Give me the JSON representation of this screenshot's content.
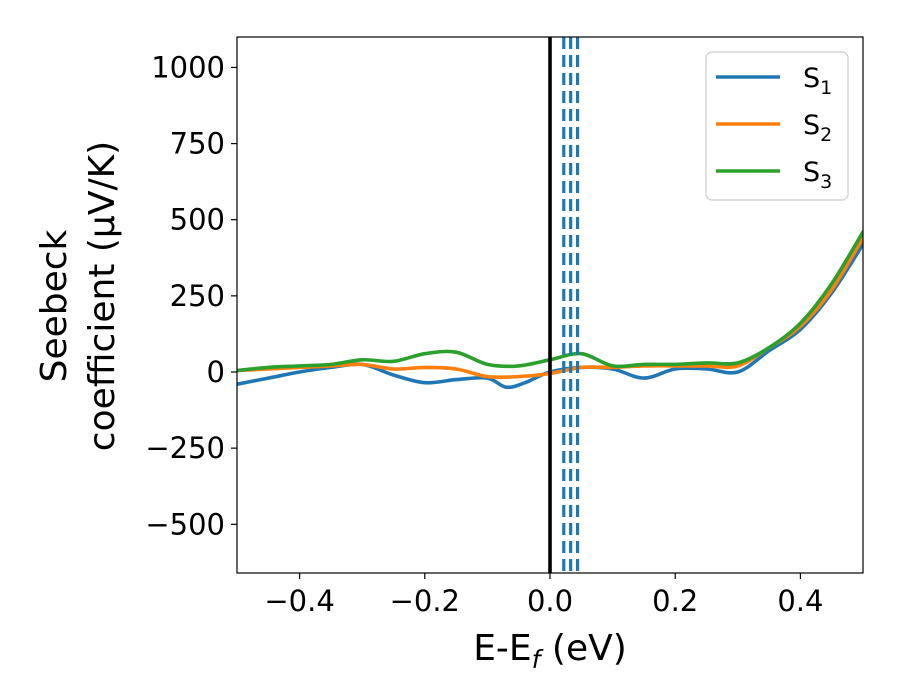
{
  "chart_data": {
    "type": "line",
    "xlabel": {
      "main": "E-E",
      "sub": "f",
      "unit": " (eV)"
    },
    "ylabel": {
      "line1": "Seebeck",
      "line2": "coefficient  (μV/K)"
    },
    "xlim": [
      -0.5,
      0.5
    ],
    "ylim": [
      -660,
      1100
    ],
    "xticks": [
      -0.4,
      -0.2,
      0.0,
      0.2,
      0.4
    ],
    "xtick_labels": [
      "−0.4",
      "−0.2",
      "0.0",
      "0.2",
      "0.4"
    ],
    "yticks": [
      -500,
      -250,
      0,
      250,
      500,
      750,
      1000
    ],
    "ytick_labels": [
      "−500",
      "−250",
      "0",
      "250",
      "500",
      "750",
      "1000"
    ],
    "grid": false,
    "legend_position": "top-right",
    "reference_lines": [
      {
        "x": 0.0,
        "style": "solid",
        "color": "#000000"
      },
      {
        "x": 0.022,
        "style": "dashed",
        "color": "#1f77b4"
      },
      {
        "x": 0.033,
        "style": "dashed",
        "color": "#1f77b4"
      },
      {
        "x": 0.044,
        "style": "dashed",
        "color": "#1f77b4"
      }
    ],
    "series": [
      {
        "name": "S",
        "sub": "1",
        "color": "#1f77b4",
        "x": [
          -0.5,
          -0.45,
          -0.4,
          -0.35,
          -0.3,
          -0.25,
          -0.2,
          -0.15,
          -0.1,
          -0.07,
          -0.04,
          0.0,
          0.05,
          0.1,
          0.15,
          0.2,
          0.25,
          0.3,
          0.35,
          0.4,
          0.45,
          0.5
        ],
        "y": [
          -40,
          -20,
          0,
          15,
          25,
          -10,
          -35,
          -25,
          -20,
          -50,
          -35,
          0,
          15,
          10,
          -20,
          10,
          10,
          0,
          70,
          140,
          260,
          420
        ]
      },
      {
        "name": "S",
        "sub": "2",
        "color": "#ff7f0e",
        "x": [
          -0.5,
          -0.45,
          -0.4,
          -0.35,
          -0.3,
          -0.25,
          -0.2,
          -0.15,
          -0.1,
          -0.05,
          0.0,
          0.05,
          0.1,
          0.15,
          0.2,
          0.25,
          0.3,
          0.35,
          0.4,
          0.45,
          0.5
        ],
        "y": [
          5,
          10,
          15,
          20,
          25,
          10,
          15,
          10,
          -15,
          -15,
          -5,
          15,
          15,
          20,
          20,
          20,
          20,
          80,
          150,
          270,
          440
        ]
      },
      {
        "name": "S",
        "sub": "3",
        "color": "#2ca02c",
        "x": [
          -0.5,
          -0.45,
          -0.4,
          -0.35,
          -0.3,
          -0.25,
          -0.2,
          -0.15,
          -0.1,
          -0.05,
          0.0,
          0.05,
          0.1,
          0.15,
          0.2,
          0.25,
          0.3,
          0.35,
          0.4,
          0.45,
          0.5
        ],
        "y": [
          5,
          15,
          20,
          25,
          40,
          35,
          60,
          65,
          25,
          20,
          40,
          60,
          20,
          25,
          25,
          30,
          30,
          80,
          160,
          290,
          460
        ]
      }
    ]
  }
}
